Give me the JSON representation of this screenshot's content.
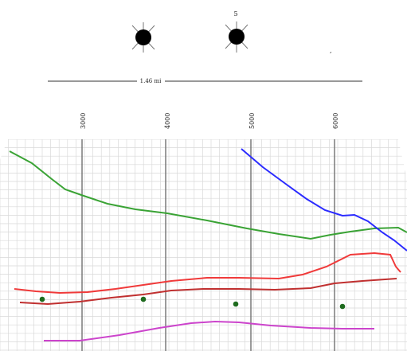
{
  "well_header": {
    "wells": [
      {
        "symbol": "dry-hole-well-icon",
        "label": ""
      },
      {
        "symbol": "dry-hole-well-icon",
        "label": "5"
      }
    ],
    "orphan_mark": ","
  },
  "scale_bar": {
    "label": "1.46 mi"
  },
  "depth_axis": {
    "ticks": [
      "3000",
      "4000",
      "5000",
      "6000"
    ]
  },
  "colors": {
    "green_horizon": "#3aa335",
    "blue_horizon": "#2b2bff",
    "red_upper": "#f03a3a",
    "red_lower": "#c03030",
    "magenta_horizon": "#cc44cc",
    "grid": "#d9d9d9",
    "depth_line": "#7a7a7a",
    "marker": "#1e6b1e"
  }
}
